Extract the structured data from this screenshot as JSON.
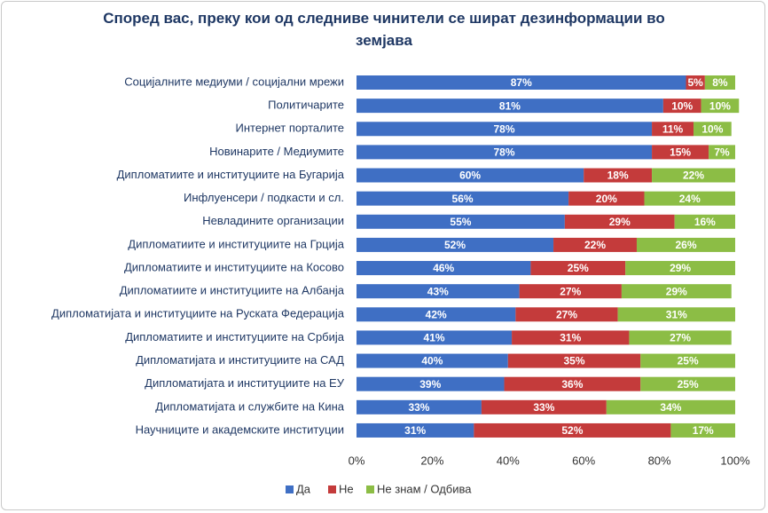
{
  "chart_data": {
    "type": "stacked-bar-horizontal",
    "title": "Според вас, преку кои од следниве чинители се шират дезинформации во земјава",
    "categories": [
      "Социјалните медиуми / социјални мрежи",
      "Политичарите",
      "Интернет порталите",
      "Новинарите / Медиумите",
      "Дипломатиите и институциите на Бугарија",
      "Инфлуенсери / подкасти и сл.",
      "Невладините организации",
      "Дипломатиите и институциите на Грција",
      "Дипломатиите и институциите на Косово",
      "Дипломатиите и институциите на Албанја",
      "Дипломатијата и институциите на Руската Федерација",
      "Дипломатиите и институциите на Србија",
      "Дипломатијата и институциите на САД",
      "Дипломатијата и институциите на ЕУ",
      "Дипломатијата и службите на Кина",
      "Научниците и академските институции"
    ],
    "series": [
      {
        "name": "Да",
        "color": "#3f6fc4",
        "values": [
          87,
          81,
          78,
          78,
          60,
          56,
          55,
          52,
          46,
          43,
          42,
          41,
          40,
          39,
          33,
          31
        ],
        "value_labels": [
          "87%",
          "81%",
          "78%",
          "78%",
          "60%",
          "56%",
          "55%",
          "52%",
          "46%",
          "43%",
          "42%",
          "41%",
          "40%",
          "39%",
          "33%",
          "31%"
        ]
      },
      {
        "name": "Не",
        "color": "#c43b3b",
        "values": [
          5,
          10,
          11,
          15,
          18,
          20,
          29,
          22,
          25,
          27,
          27,
          31,
          35,
          36,
          33,
          52
        ],
        "value_labels": [
          "5%",
          "10%",
          "11%",
          "15%",
          "18%",
          "20%",
          "29%",
          "22%",
          "25%",
          "27%",
          "27%",
          "31%",
          "35%",
          "36%",
          "33%",
          "52%"
        ]
      },
      {
        "name": "Не знам /  Одбива",
        "color": "#8cbd45",
        "values": [
          8,
          10,
          10,
          7,
          22,
          24,
          16,
          26,
          29,
          29,
          31,
          27,
          25,
          25,
          34,
          17
        ],
        "value_labels": [
          "8%",
          "10%",
          "10%",
          "7%",
          "22%",
          "24%",
          "16%",
          "26%",
          "29%",
          "29%",
          "31%",
          "27%",
          "25%",
          "25%",
          "34%",
          "17%"
        ]
      }
    ],
    "xlim": [
      0,
      100
    ],
    "xticks": [
      {
        "value": 0,
        "label": "0%"
      },
      {
        "value": 20,
        "label": "20%"
      },
      {
        "value": 40,
        "label": "40%"
      },
      {
        "value": 60,
        "label": "60%"
      },
      {
        "value": 80,
        "label": "80%"
      },
      {
        "value": 100,
        "label": "100%"
      }
    ],
    "legend": "bottom"
  }
}
